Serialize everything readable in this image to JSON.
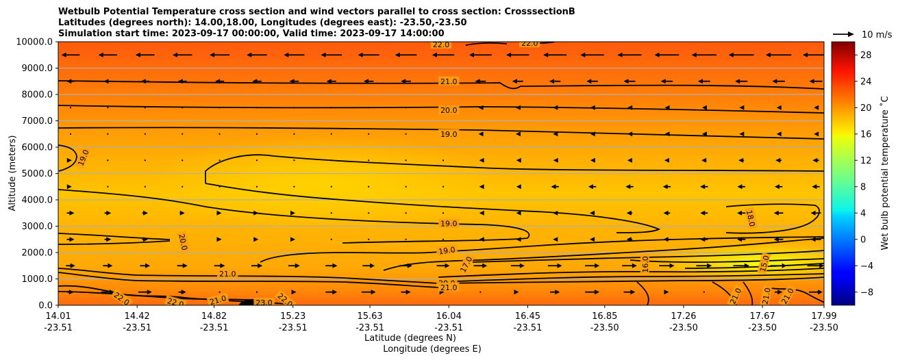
{
  "chart_data": {
    "type": "filled-contour-cross-section",
    "title_lines": [
      "Wetbulb Potential Temperature cross section and wind vectors parallel to cross section: CrosssectionB",
      "Latitudes (degrees north): 14.00,18.00, Longitudes (degrees east): -23.50,-23.50",
      "Simulation start time: 2023-09-17 00:00:00, Valid time: 2023-09-17 14:00:00"
    ],
    "ylabel": "Altitude (meters)",
    "xlabel": "Latitude (degrees N)",
    "xlabel2": "Longitude (degrees E)",
    "ylim": [
      0,
      10000
    ],
    "yticks": [
      "0.0",
      "1000.0",
      "2000.0",
      "3000.0",
      "4000.0",
      "5000.0",
      "6000.0",
      "7000.0",
      "8000.0",
      "9000.0",
      "10000.0"
    ],
    "xticks": [
      {
        "lat": "14.01",
        "lon": "-23.51"
      },
      {
        "lat": "14.42",
        "lon": "-23.51"
      },
      {
        "lat": "14.82",
        "lon": "-23.51"
      },
      {
        "lat": "15.23",
        "lon": "-23.51"
      },
      {
        "lat": "15.63",
        "lon": "-23.51"
      },
      {
        "lat": "16.04",
        "lon": "-23.51"
      },
      {
        "lat": "16.45",
        "lon": "-23.51"
      },
      {
        "lat": "16.85",
        "lon": "-23.50"
      },
      {
        "lat": "17.26",
        "lon": "-23.50"
      },
      {
        "lat": "17.67",
        "lon": "-23.50"
      },
      {
        "lat": "17.99",
        "lon": "-23.50"
      }
    ],
    "colorbar": {
      "label": "Wet bulb potential temperature ˚C",
      "range": [
        -10,
        30
      ],
      "ticks": [
        "−8",
        "−4",
        "0",
        "4",
        "8",
        "12",
        "16",
        "20",
        "24",
        "28"
      ],
      "colormap": "jet"
    },
    "wind_key": "10 m/s",
    "contour_labels": [
      {
        "text": "22.0",
        "lat": 16.0,
        "alt": 9900,
        "rot": 0
      },
      {
        "text": "22.0",
        "lat": 16.46,
        "alt": 9950,
        "rot": 0
      },
      {
        "text": "21.0",
        "lat": 16.04,
        "alt": 8500,
        "rot": 0
      },
      {
        "text": "20.0",
        "lat": 16.04,
        "alt": 7400,
        "rot": 0
      },
      {
        "text": "19.0",
        "lat": 16.04,
        "alt": 6500,
        "rot": 0
      },
      {
        "text": "19.0",
        "lat": 14.14,
        "alt": 5600,
        "rot": -68
      },
      {
        "text": "18.0",
        "lat": 17.61,
        "alt": 3300,
        "rot": 78
      },
      {
        "text": "20.0",
        "lat": 14.66,
        "alt": 2400,
        "rot": 78
      },
      {
        "text": "19.0",
        "lat": 16.04,
        "alt": 3100,
        "rot": 0
      },
      {
        "text": "19.0",
        "lat": 16.03,
        "alt": 2080,
        "rot": -8
      },
      {
        "text": "17.0",
        "lat": 16.13,
        "alt": 1550,
        "rot": -62
      },
      {
        "text": "16.0",
        "lat": 17.06,
        "alt": 1550,
        "rot": -90
      },
      {
        "text": "15.0",
        "lat": 17.68,
        "alt": 1580,
        "rot": -75
      },
      {
        "text": "21.0",
        "lat": 14.89,
        "alt": 1200,
        "rot": 0
      },
      {
        "text": "20.0",
        "lat": 16.03,
        "alt": 850,
        "rot": 0
      },
      {
        "text": "21.0",
        "lat": 16.04,
        "alt": 680,
        "rot": 0
      },
      {
        "text": "22.0",
        "lat": 14.34,
        "alt": 250,
        "rot": 35
      },
      {
        "text": "22.0",
        "lat": 14.62,
        "alt": 100,
        "rot": 15
      },
      {
        "text": "21.0",
        "lat": 14.84,
        "alt": 200,
        "rot": -15
      },
      {
        "text": "23.0",
        "lat": 15.08,
        "alt": 100,
        "rot": 0
      },
      {
        "text": "22.0",
        "lat": 15.19,
        "alt": 200,
        "rot": 40
      },
      {
        "text": "21.0",
        "lat": 17.53,
        "alt": 350,
        "rot": -65
      },
      {
        "text": "21.0",
        "lat": 17.69,
        "alt": 350,
        "rot": -80
      },
      {
        "text": "21.0",
        "lat": 17.8,
        "alt": 350,
        "rot": -60
      }
    ]
  }
}
